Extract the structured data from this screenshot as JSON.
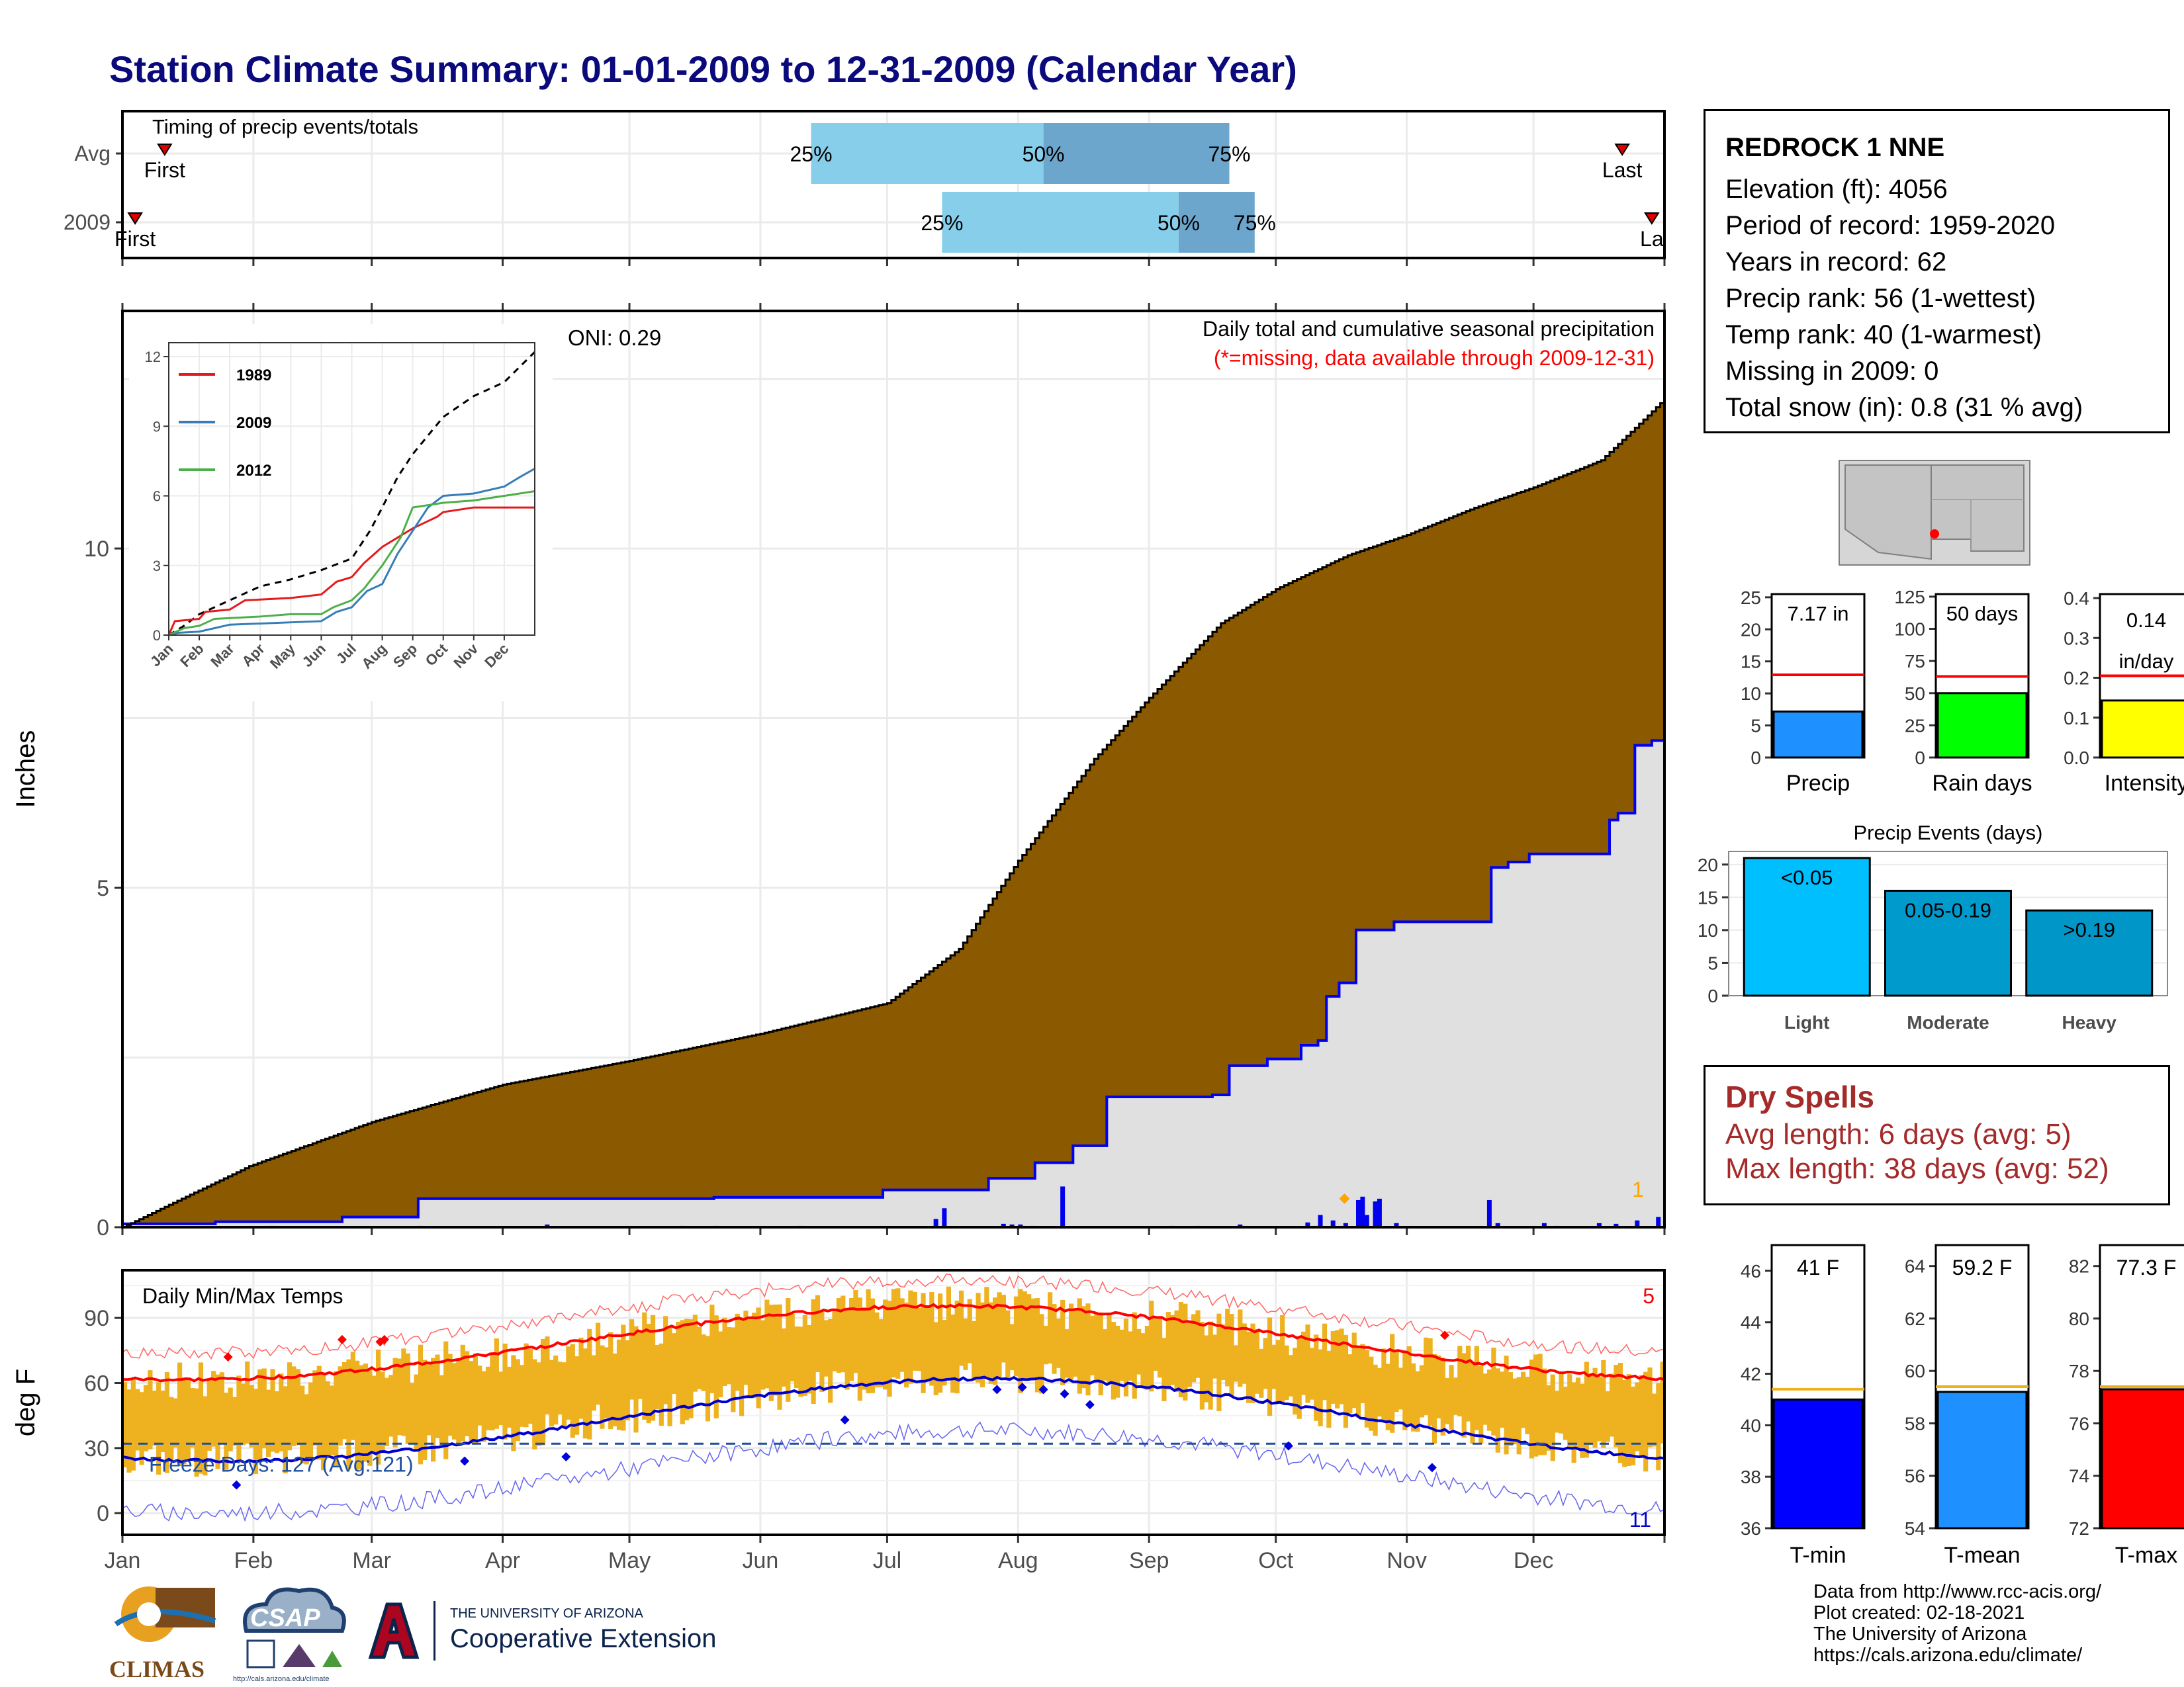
{
  "title": "Station Climate Summary: 01-01-2009 to 12-31-2009 (Calendar Year)",
  "timing_panel": {
    "title": "Timing of precip events/totals",
    "rows": [
      {
        "label": "Avg",
        "first_label": "First",
        "last_label": "Last",
        "first_day": 10,
        "last_day": 355,
        "p25_day": 163,
        "p50_day": 218,
        "p75_day": 262,
        "p25_label": "25%",
        "p50_label": "50%",
        "p75_label": "75%"
      },
      {
        "label": "2009",
        "first_label": "First",
        "last_label": "La",
        "first_day": 3,
        "last_day": 362,
        "p25_day": 194,
        "p50_day": 250,
        "p75_day": 268,
        "p25_label": "25%",
        "p50_label": "50%",
        "p75_label": "75%"
      }
    ]
  },
  "precip_panel": {
    "title": "Daily total and cumulative seasonal precipitation",
    "subtitle": "(*=missing, data available through 2009-12-31)",
    "oni": "ONI: 0.29",
    "ylabel": "Inches",
    "yticks": [
      0,
      5,
      10
    ],
    "ylim": [
      0,
      13.5
    ],
    "corner_count": "1",
    "colors": {
      "avg_fill": "#8b5a00",
      "obs_fill": "#e0e0e0",
      "obs_line": "#0000ee",
      "daily_bar": "#0000ee"
    }
  },
  "inset": {
    "yticks": [
      0,
      3,
      6,
      9,
      12
    ],
    "xticks": [
      "Jan",
      "Feb",
      "Mar",
      "Apr",
      "May",
      "Jun",
      "Jul",
      "Aug",
      "Sep",
      "Oct",
      "Nov",
      "Dec"
    ],
    "legend": [
      {
        "name": "1989",
        "color": "#e41a1c"
      },
      {
        "name": "2009",
        "color": "#377eb8"
      },
      {
        "name": "2012",
        "color": "#4daf4a"
      }
    ]
  },
  "temp_panel": {
    "title": "Daily Min/Max Temps",
    "ylabel": "deg F",
    "yticks": [
      0,
      30,
      60,
      90
    ],
    "ylim": [
      -10,
      112
    ],
    "freeze_text": "Freeze Days: 127 (Avg:121)",
    "count_max": "5",
    "count_min": "11",
    "colors": {
      "bar": "#eeb11f",
      "max_avg": "#ff0000",
      "min_avg": "#0000cc",
      "freeze": "#1f4fa0"
    }
  },
  "months": [
    "Jan",
    "Feb",
    "Mar",
    "Apr",
    "May",
    "Jun",
    "Jul",
    "Aug",
    "Sep",
    "Oct",
    "Nov",
    "Dec"
  ],
  "station": {
    "name": "REDROCK 1 NNE",
    "lines": [
      "Elevation (ft): 4056",
      "Period of record: 1959-2020",
      "Years in record: 62",
      "Precip rank: 56 (1-wettest)",
      "Temp rank: 40 (1-warmest)",
      "Missing in 2009: 0",
      "Total snow (in): 0.8 (31 % avg)"
    ]
  },
  "small_bars": [
    {
      "label": "Precip",
      "value_label": "7.17 in",
      "value": 7.17,
      "avg": 12.9,
      "ticks": [
        "0",
        "5",
        "10",
        "15",
        "20",
        "25"
      ],
      "max": 25.5,
      "color": "#1e90ff"
    },
    {
      "label": "Rain days",
      "value_label": "50 days",
      "value": 50,
      "avg": 63,
      "ticks": [
        "0",
        "25",
        "50",
        "75",
        "100",
        "125"
      ],
      "max": 127,
      "color": "#00ff00"
    },
    {
      "label": "Intensity",
      "value_label_1": "0.14",
      "value_label_2": "in/day",
      "value": 0.143,
      "avg": 0.205,
      "ticks": [
        "0.0",
        "0.1",
        "0.2",
        "0.3",
        "0.4"
      ],
      "max": 0.41,
      "color": "#ffff00"
    }
  ],
  "precip_events": {
    "title": "Precip Events (days)",
    "yticks": [
      0,
      5,
      10,
      15,
      20
    ],
    "categories": [
      "Light",
      "Moderate",
      "Heavy"
    ],
    "bar_labels": [
      "<0.05",
      "0.05-0.19",
      ">0.19"
    ],
    "values": [
      21,
      16,
      13
    ],
    "colors": [
      "#00bfff",
      "#009acd",
      "#0096c8"
    ]
  },
  "dry_spells": {
    "title": "Dry Spells",
    "avg": "Avg length: 6 days (avg: 5)",
    "max": "Max length: 38 days (avg: 52)"
  },
  "temp_bars": [
    {
      "label": "T-min",
      "value_label": "41 F",
      "value": 41.0,
      "avg": 41.4,
      "ticks": [
        36,
        38,
        40,
        42,
        44,
        46
      ],
      "min": 36,
      "max": 47,
      "color": "#0000ff"
    },
    {
      "label": "T-mean",
      "value_label": "59.2 F",
      "value": 59.2,
      "avg": 59.4,
      "ticks": [
        54,
        56,
        58,
        60,
        62,
        64
      ],
      "min": 54,
      "max": 64.8,
      "color": "#1e90ff"
    },
    {
      "label": "T-max",
      "value_label": "77.3 F",
      "value": 77.3,
      "avg": 77.4,
      "ticks": [
        72,
        74,
        76,
        78,
        80,
        82
      ],
      "min": 72,
      "max": 82.8,
      "color": "#ff0000"
    }
  ],
  "credits": [
    "Data from http://www.rcc-acis.org/",
    "Plot created: 02-18-2021",
    "The University of Arizona",
    "https://cals.arizona.edu/climate/"
  ],
  "logos": {
    "climas": "CLIMAS",
    "csap": "CSAP",
    "csap_url": "http://cals.arizona.edu/climate",
    "ua_line1": "THE UNIVERSITY OF ARIZONA",
    "ua_line2": "Cooperative Extension"
  }
}
